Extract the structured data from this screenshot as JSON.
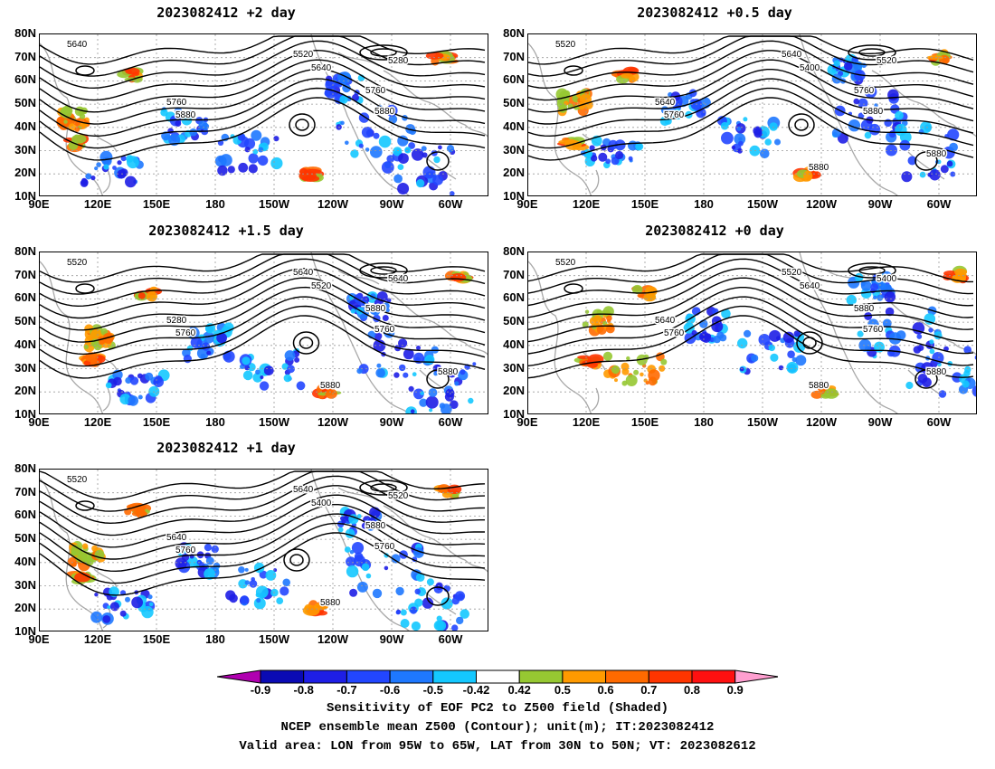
{
  "panels": [
    {
      "title": "2023082412 +2 day",
      "contour_labels": [
        "5640",
        "5520",
        "5640",
        "5280",
        "5760",
        "5880",
        "5760",
        "5880"
      ]
    },
    {
      "title": "2023082412 +0.5 day",
      "contour_labels": [
        "5520",
        "5640",
        "5400",
        "5520",
        "5640",
        "5760",
        "5760",
        "5880",
        "5880",
        "5880"
      ]
    },
    {
      "title": "2023082412 +1.5 day",
      "contour_labels": [
        "5520",
        "5640",
        "5520",
        "5640",
        "5280",
        "5760",
        "5880",
        "5760",
        "5880",
        "5880"
      ]
    },
    {
      "title": "2023082412 +0 day",
      "contour_labels": [
        "5520",
        "5520",
        "5640",
        "5400",
        "5640",
        "5760",
        "5880",
        "5760",
        "5880",
        "5880"
      ]
    },
    {
      "title": "2023082412 +1 day",
      "contour_labels": [
        "5520",
        "5640",
        "5400",
        "5520",
        "5640",
        "5760",
        "5880",
        "5760",
        "5880"
      ]
    }
  ],
  "lat_labels": [
    "80N",
    "70N",
    "60N",
    "50N",
    "40N",
    "30N",
    "20N",
    "10N"
  ],
  "lon_labels": [
    "90E",
    "120E",
    "150E",
    "180",
    "150W",
    "120W",
    "90W",
    "60W"
  ],
  "colorbar": {
    "levels": [
      "-0.9",
      "-0.8",
      "-0.7",
      "-0.6",
      "-0.5",
      "-0.42",
      "0.42",
      "0.5",
      "0.6",
      "0.7",
      "0.8",
      "0.9"
    ],
    "colors": [
      "#b000b0",
      "#0a0ab4",
      "#1e1ee6",
      "#2246ff",
      "#1e78ff",
      "#14c8ff",
      "#ffffff",
      "#96c832",
      "#ff9a00",
      "#ff6a00",
      "#ff3500",
      "#ff1010",
      "#ff9fd0"
    ]
  },
  "caption": {
    "line1": "Sensitivity of EOF PC2 to Z500 field (Shaded)",
    "line2": "NCEP ensemble mean Z500 (Contour); unit(m); IT:2023082412",
    "line3": "Valid area: LON from 95W to 65W, LAT from 30N to 50N; VT: 2023082612"
  }
}
